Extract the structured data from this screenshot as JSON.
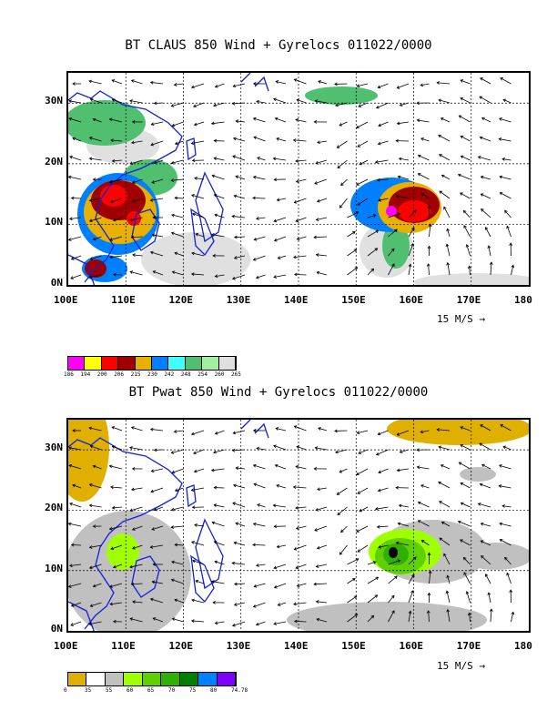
{
  "panel1": {
    "title": "BT CLAUS 850 Wind + Gyrelocs 011022/0000",
    "x_ticks": [
      "100E",
      "110E",
      "120E",
      "130E",
      "140E",
      "150E",
      "160E",
      "170E",
      "180"
    ],
    "y_ticks": [
      "30N",
      "20N",
      "10N",
      "0N"
    ],
    "scale_label": "15 M/S →",
    "legend": {
      "colors": [
        "#ff00ff",
        "#ffff00",
        "#ff0000",
        "#a00000",
        "#e8b000",
        "#0080ff",
        "#40ffff",
        "#50c070",
        "#a0f0a0",
        "#e0e0e0"
      ],
      "labels": [
        "186",
        "194",
        "200",
        "206",
        "215",
        "230",
        "242",
        "248",
        "254",
        "260",
        "265"
      ]
    }
  },
  "panel2": {
    "title": "BT Pwat 850 Wind + Gyrelocs 011022/0000",
    "x_ticks": [
      "100E",
      "110E",
      "120E",
      "130E",
      "140E",
      "150E",
      "160E",
      "170E",
      "180"
    ],
    "y_ticks": [
      "30N",
      "20N",
      "10N",
      "0N"
    ],
    "scale_label": "15 M/S →",
    "legend": {
      "colors": [
        "#e0b000",
        "#ffffff",
        "#c0c0c0",
        "#a0ff00",
        "#60d000",
        "#30b000",
        "#008000",
        "#0080ff",
        "#8000ff"
      ],
      "labels": [
        "0",
        "35",
        "55",
        "60",
        "65",
        "70",
        "75",
        "80",
        "74.78"
      ]
    }
  }
}
